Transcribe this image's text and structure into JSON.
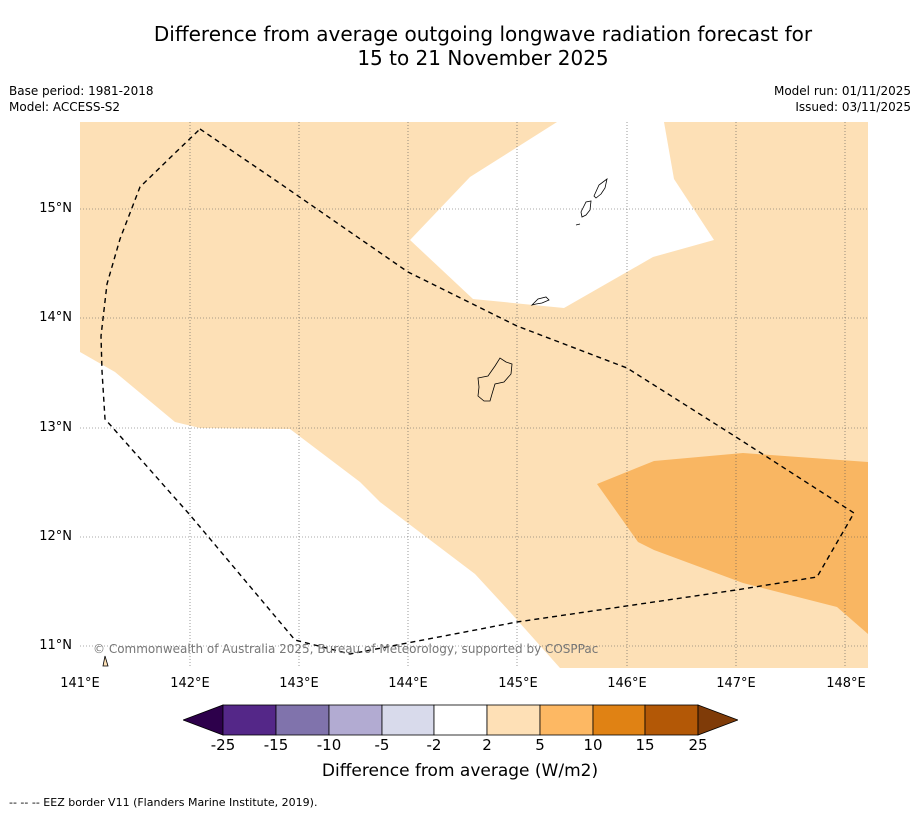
{
  "title": {
    "line1": "Difference from average outgoing longwave radiation forecast for",
    "line2": "15 to 21 November 2025"
  },
  "meta_left": {
    "base_period": "Base period: 1981-2018",
    "model": "Model: ACCESS-S2"
  },
  "meta_right": {
    "model_run": "Model run: 01/11/2025",
    "issued": "Issued: 03/11/2025"
  },
  "map": {
    "copyright": "© Commonwealth of Australia 2025, Bureau of Meteorology, supported by COSPPac",
    "lat_labels": [
      "15°N",
      "14°N",
      "13°N",
      "12°N",
      "11°N"
    ],
    "lon_labels": [
      "141°E",
      "142°E",
      "143°E",
      "144°E",
      "145°E",
      "146°E",
      "147°E",
      "148°E"
    ],
    "extent": {
      "lon": [
        141.0,
        148.2
      ],
      "lat": [
        10.8,
        15.8
      ]
    },
    "fill_colors": {
      "land_shade_2_5": "#fde0b6",
      "shade_5_10": "#f9b662",
      "neutral": "#ffffff"
    }
  },
  "colorbar": {
    "tick_labels": [
      "-25",
      "-15",
      "-10",
      "-5",
      "-2",
      "2",
      "5",
      "10",
      "15",
      "25"
    ],
    "colors": [
      "#2d004b",
      "#542788",
      "#8073ac",
      "#b2abd2",
      "#d8daeb",
      "#ffffff",
      "#fee0b6",
      "#fdb863",
      "#e08214",
      "#b35806",
      "#7f3b08"
    ],
    "label": "Difference from average (W/m2)"
  },
  "footnote": "-- -- -- EEZ border V11 (Flanders Marine Institute, 2019)."
}
